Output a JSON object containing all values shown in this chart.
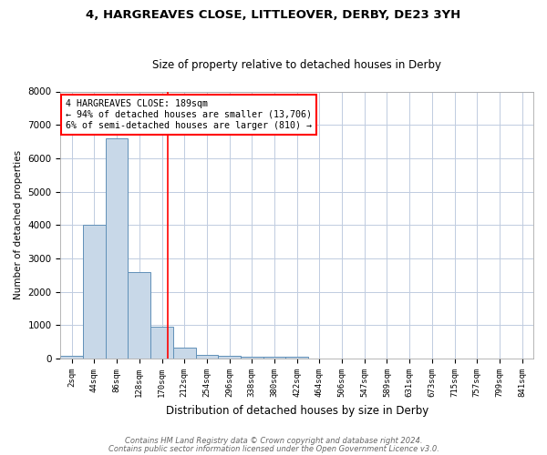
{
  "title1": "4, HARGREAVES CLOSE, LITTLEOVER, DERBY, DE23 3YH",
  "title2": "Size of property relative to detached houses in Derby",
  "xlabel": "Distribution of detached houses by size in Derby",
  "ylabel": "Number of detached properties",
  "bar_color": "#c8d8e8",
  "bar_edge_color": "#6090b8",
  "categories": [
    "2sqm",
    "44sqm",
    "86sqm",
    "128sqm",
    "170sqm",
    "212sqm",
    "254sqm",
    "296sqm",
    "338sqm",
    "380sqm",
    "422sqm",
    "464sqm",
    "506sqm",
    "547sqm",
    "589sqm",
    "631sqm",
    "673sqm",
    "715sqm",
    "757sqm",
    "799sqm",
    "841sqm"
  ],
  "values": [
    75,
    4000,
    6600,
    2600,
    950,
    325,
    125,
    75,
    60,
    60,
    60,
    0,
    0,
    0,
    0,
    0,
    0,
    0,
    0,
    0,
    0
  ],
  "red_line_x": 4.27,
  "ylim": [
    0,
    8000
  ],
  "yticks": [
    0,
    1000,
    2000,
    3000,
    4000,
    5000,
    6000,
    7000,
    8000
  ],
  "annotation_text": "4 HARGREAVES CLOSE: 189sqm\n← 94% of detached houses are smaller (13,706)\n6% of semi-detached houses are larger (810) →",
  "footer1": "Contains HM Land Registry data © Crown copyright and database right 2024.",
  "footer2": "Contains public sector information licensed under the Open Government Licence v3.0.",
  "background_color": "#ffffff",
  "grid_color": "#c0cce0",
  "title1_fontsize": 9.5,
  "title2_fontsize": 8.5
}
